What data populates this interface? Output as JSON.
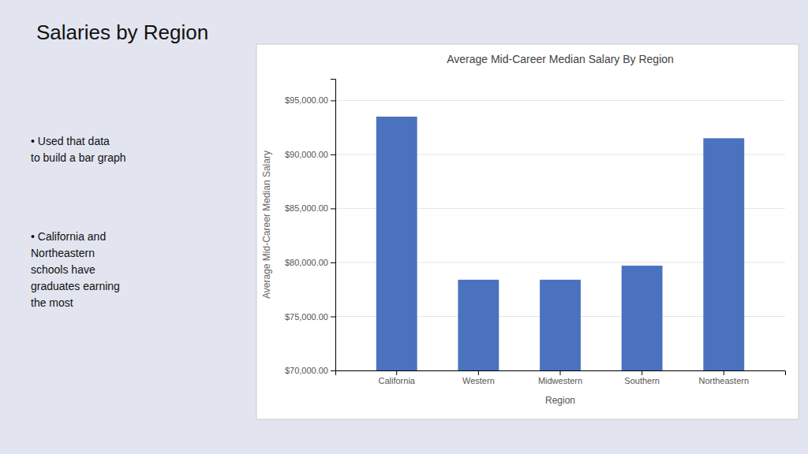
{
  "title": "Salaries by Region",
  "bullets": [
    "• Used that data\nto build a bar graph",
    "• California and\nNortheastern\nschools have\ngraduates earning\nthe most"
  ],
  "chart_data": {
    "type": "bar",
    "title": "Average Mid-Career Median Salary By Region",
    "xlabel": "Region",
    "ylabel": "Average Mid-Career Median Salary",
    "categories": [
      "California",
      "Western",
      "Midwestern",
      "Southern",
      "Northeastern"
    ],
    "values": [
      93500,
      78400,
      78400,
      79700,
      91500
    ],
    "color": "#4A72BE",
    "ylim": [
      70000,
      97000
    ],
    "yticks": [
      {
        "value": 70000,
        "label": "$70,000.00"
      },
      {
        "value": 75000,
        "label": "$75,000.00"
      },
      {
        "value": 80000,
        "label": "$80,000.00"
      },
      {
        "value": 85000,
        "label": "$85,000.00"
      },
      {
        "value": 90000,
        "label": "$90,000.00"
      },
      {
        "value": 95000,
        "label": "$95,000.00"
      }
    ],
    "grid": true
  }
}
